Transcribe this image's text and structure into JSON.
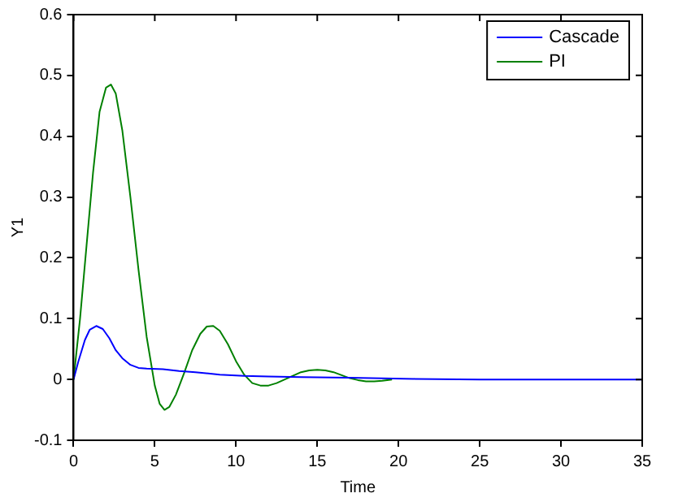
{
  "chart_data": {
    "type": "line",
    "xlabel": "Time",
    "ylabel": "Y1",
    "xlim": [
      0,
      35
    ],
    "xticks": [
      0,
      5,
      10,
      15,
      20,
      25,
      30,
      35
    ],
    "ylim": [
      -0.1,
      0.6
    ],
    "yticks": [
      -0.1,
      0,
      0.1,
      0.2,
      0.3,
      0.4,
      0.5,
      0.6
    ],
    "grid": false,
    "legend": "top right",
    "marker": "none",
    "line_style": "solid",
    "series": [
      {
        "name": "Cascade",
        "color": "#0000ff",
        "x": [
          0,
          0.3,
          0.7,
          1.0,
          1.4,
          1.8,
          2.2,
          2.6,
          3.0,
          3.5,
          4.0,
          4.5,
          5.5,
          6.5,
          7.5,
          9,
          10.5,
          12,
          14,
          17,
          21,
          25,
          35
        ],
        "values": [
          0,
          0.03,
          0.065,
          0.082,
          0.088,
          0.083,
          0.068,
          0.048,
          0.035,
          0.024,
          0.019,
          0.018,
          0.017,
          0.014,
          0.012,
          0.008,
          0.006,
          0.005,
          0.004,
          0.003,
          0.001,
          0,
          0
        ]
      },
      {
        "name": "PI",
        "color": "#008000",
        "x": [
          0,
          0.4,
          0.8,
          1.2,
          1.6,
          2.0,
          2.3,
          2.6,
          3.0,
          3.5,
          4.0,
          4.5,
          5.0,
          5.3,
          5.6,
          5.9,
          6.3,
          6.8,
          7.3,
          7.8,
          8.2,
          8.6,
          9.0,
          9.5,
          10.0,
          10.5,
          11.0,
          11.5,
          12.0,
          12.5,
          13.0,
          13.5,
          14.0,
          14.5,
          15.0,
          15.5,
          16.0,
          16.5,
          17.0,
          17.5,
          18.0,
          18.5,
          19.0,
          19.6
        ],
        "values": [
          0,
          0.1,
          0.22,
          0.34,
          0.44,
          0.48,
          0.485,
          0.47,
          0.41,
          0.3,
          0.18,
          0.07,
          -0.01,
          -0.04,
          -0.05,
          -0.045,
          -0.025,
          0.01,
          0.048,
          0.075,
          0.087,
          0.088,
          0.08,
          0.058,
          0.03,
          0.008,
          -0.006,
          -0.01,
          -0.01,
          -0.006,
          0.0,
          0.006,
          0.012,
          0.015,
          0.016,
          0.015,
          0.012,
          0.007,
          0.002,
          -0.001,
          -0.003,
          -0.003,
          -0.002,
          0
        ]
      }
    ]
  }
}
